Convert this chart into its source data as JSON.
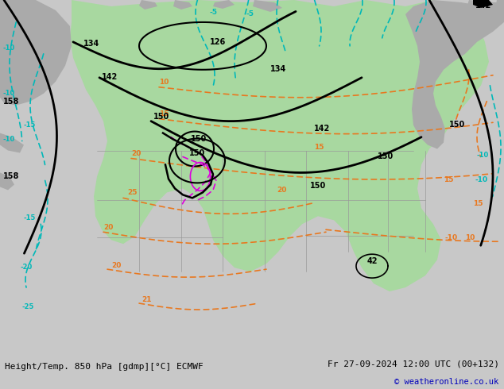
{
  "title_left": "Height/Temp. 850 hPa [gdmp][°C] ECMWF",
  "title_right": "Fr 27-09-2024 12:00 UTC (00+132)",
  "copyright": "© weatheronline.co.uk",
  "bg_color": "#c8c8c8",
  "bottom_bar_color": "#e8e8e8",
  "figsize": [
    6.34,
    4.9
  ],
  "dpi": 100,
  "map_green": "#a8d8a0",
  "map_gray": "#aaaaaa",
  "map_ocean": "#c0c8c8",
  "contour_black_lw": 2.0,
  "contour_orange_lw": 1.2,
  "contour_cyan_lw": 1.2,
  "contour_magenta_lw": 1.2
}
